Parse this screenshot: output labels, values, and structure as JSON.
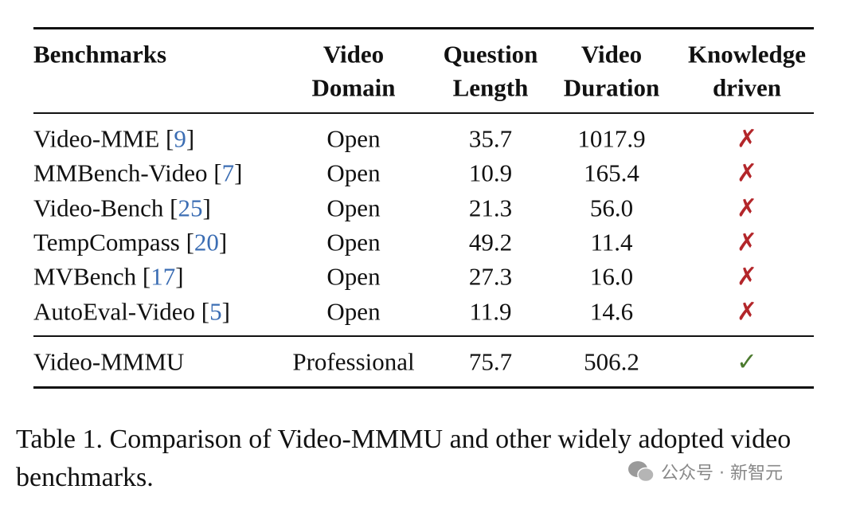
{
  "table": {
    "headers": [
      [
        "Benchmarks"
      ],
      [
        "Video",
        "Domain"
      ],
      [
        "Question",
        "Length"
      ],
      [
        "Video",
        "Duration"
      ],
      [
        "Knowledge",
        "driven"
      ]
    ],
    "rows": [
      {
        "benchmark": "Video-MME [9]",
        "domain": "Open",
        "question_length": "35.7",
        "video_duration": "1017.9",
        "knowledge_driven": "✗"
      },
      {
        "benchmark": "MMBench-Video [7]",
        "domain": "Open",
        "question_length": "10.9",
        "video_duration": "165.4",
        "knowledge_driven": "✗"
      },
      {
        "benchmark": "Video-Bench [25]",
        "domain": "Open",
        "question_length": "21.3",
        "video_duration": "56.0",
        "knowledge_driven": "✗"
      },
      {
        "benchmark": "TempCompass [20]",
        "domain": "Open",
        "question_length": "49.2",
        "video_duration": "11.4",
        "knowledge_driven": "✗"
      },
      {
        "benchmark": "MVBench [17]",
        "domain": "Open",
        "question_length": "27.3",
        "video_duration": "16.0",
        "knowledge_driven": "✗"
      },
      {
        "benchmark": "AutoEval-Video [5]",
        "domain": "Open",
        "question_length": "11.9",
        "video_duration": "14.6",
        "knowledge_driven": "✗"
      }
    ],
    "ours": {
      "benchmark": "Video-MMMU",
      "domain": "Professional",
      "question_length": "75.7",
      "video_duration": "506.2",
      "knowledge_driven": "✓"
    }
  },
  "caption": "Table 1. Comparison of Video-MMMU and other widely adopted video benchmarks.",
  "watermark": "公众号 · 新智元"
}
